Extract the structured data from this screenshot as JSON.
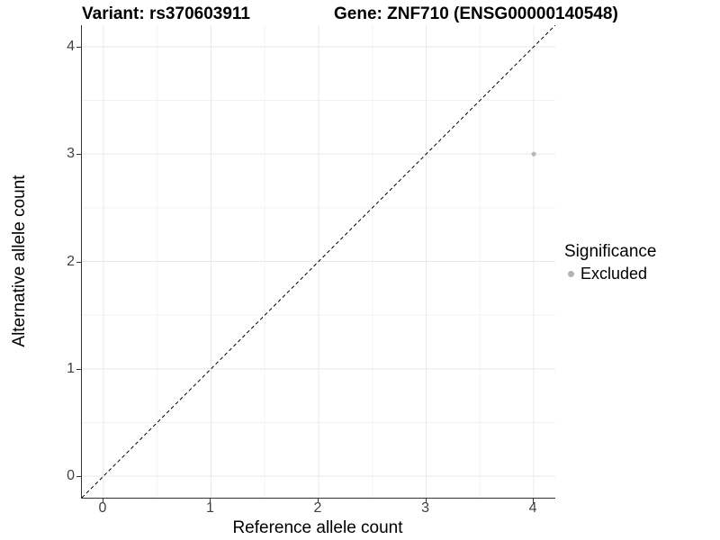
{
  "header": {
    "left_title": "Variant: rs370603911",
    "right_title": "Gene: ZNF710 (ENSG00000140548)"
  },
  "chart_data": {
    "type": "scatter",
    "title_left": "Variant: rs370603911",
    "title_right": "Gene: ZNF710 (ENSG00000140548)",
    "xlabel": "Reference allele count",
    "ylabel": "Alternative allele count",
    "xlim": [
      -0.2,
      4.2
    ],
    "ylim": [
      -0.2,
      4.2
    ],
    "x_ticks": [
      0,
      1,
      2,
      3,
      4
    ],
    "y_ticks": [
      0,
      1,
      2,
      3,
      4
    ],
    "x_minor_ticks": [
      0.5,
      1.5,
      2.5,
      3.5
    ],
    "y_minor_ticks": [
      0.5,
      1.5,
      2.5,
      3.5
    ],
    "grid": "major+minor",
    "points": [
      {
        "x": 4,
        "y": 3,
        "series": "Excluded"
      }
    ],
    "reference_line": {
      "description": "identity line y = x",
      "style": "dashed",
      "from": [
        -0.2,
        -0.2
      ],
      "to": [
        4.2,
        4.2
      ]
    },
    "legend": {
      "title": "Significance",
      "position": "right",
      "entries": [
        {
          "label": "Excluded",
          "color": "#b9b9b9"
        }
      ]
    }
  },
  "colors": {
    "background": "#ffffff",
    "point": "#b9b9b9",
    "legend_dot": "#b3b3b3",
    "grid_major": "#e8e8e8",
    "grid_minor": "#f2f2f2",
    "axis_line": "#333333",
    "tick_text": "#404040",
    "reference_line": "#000000",
    "title_text": "#000000"
  }
}
